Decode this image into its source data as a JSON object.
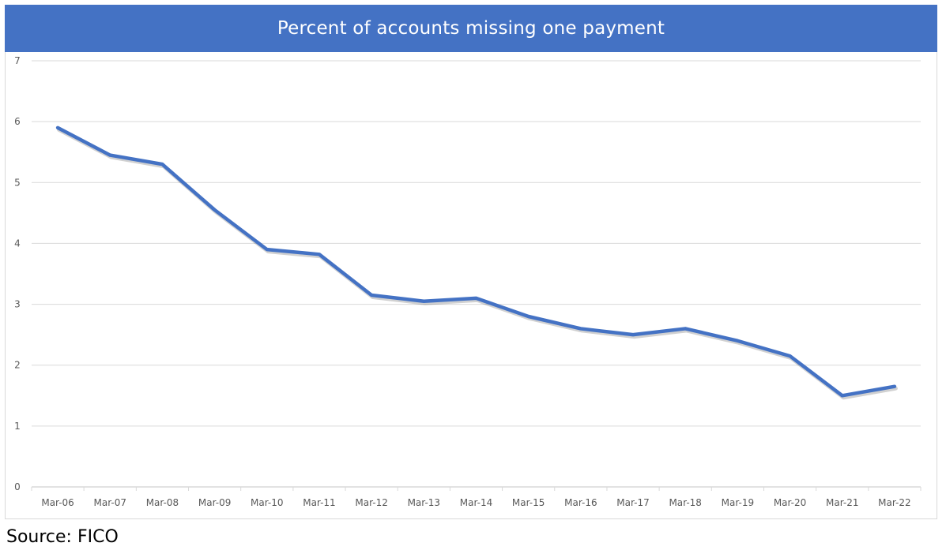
{
  "title": "Percent of accounts missing one payment",
  "source": "Source: FICO",
  "colors": {
    "title_bar": "#4472c4",
    "title_text": "#ffffff",
    "line": "#4472c4",
    "gridline": "#d9d9d9",
    "tick_text": "#595959"
  },
  "chart_data": {
    "type": "line",
    "title": "Percent of accounts missing one payment",
    "xlabel": "",
    "ylabel": "",
    "ylim": [
      0,
      7
    ],
    "yticks": [
      0,
      1,
      2,
      3,
      4,
      5,
      6,
      7
    ],
    "grid": true,
    "legend": "none",
    "categories": [
      "Mar-06",
      "Mar-07",
      "Mar-08",
      "Mar-09",
      "Mar-10",
      "Mar-11",
      "Mar-12",
      "Mar-13",
      "Mar-14",
      "Mar-15",
      "Mar-16",
      "Mar-17",
      "Mar-18",
      "Mar-19",
      "Mar-20",
      "Mar-21",
      "Mar-22"
    ],
    "series": [
      {
        "name": "Percent of accounts missing one payment",
        "values": [
          5.9,
          5.45,
          5.3,
          4.55,
          3.9,
          3.82,
          3.15,
          3.05,
          3.1,
          2.8,
          2.6,
          2.5,
          2.6,
          2.4,
          2.15,
          1.5,
          1.65
        ]
      }
    ],
    "annotations": [
      "Source: FICO"
    ]
  }
}
